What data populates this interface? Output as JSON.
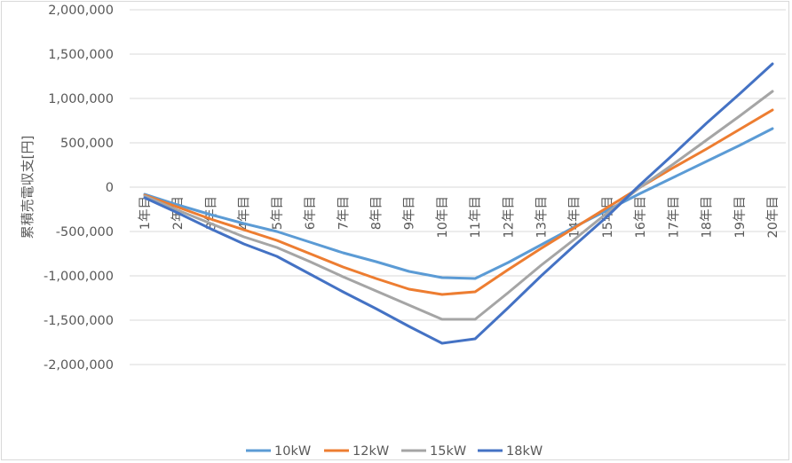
{
  "chart_data": {
    "type": "line",
    "title": "",
    "xlabel": "",
    "ylabel": "累積売電収支[円]",
    "ylim": [
      -2000000,
      2000000
    ],
    "yticks": [
      2000000,
      1500000,
      1000000,
      500000,
      0,
      -500000,
      -1000000,
      -1500000,
      -2000000
    ],
    "ytick_labels": [
      "2,000,000",
      "1,500,000",
      "1,000,000",
      "500,000",
      "0",
      "-500,000",
      "-1,000,000",
      "-1,500,000",
      "-2,000,000"
    ],
    "categories": [
      "1年目",
      "2年目",
      "3年目",
      "4年目",
      "5年目",
      "6年目",
      "7年目",
      "8年目",
      "9年目",
      "10年目",
      "11年目",
      "12年目",
      "13年目",
      "14年目",
      "15年目",
      "16年目",
      "17年目",
      "18年目",
      "19年目",
      "20年目"
    ],
    "grid": true,
    "legend_position": "bottom",
    "series": [
      {
        "name": "10kW",
        "color": "#5b9bd5",
        "values": [
          -80000,
          -200000,
          -310000,
          -410000,
          -500000,
          -620000,
          -740000,
          -840000,
          -950000,
          -1020000,
          -1030000,
          -850000,
          -650000,
          -450000,
          -260000,
          -70000,
          110000,
          290000,
          470000,
          660000
        ]
      },
      {
        "name": "12kW",
        "color": "#ed7d31",
        "values": [
          -90000,
          -225000,
          -360000,
          -480000,
          -600000,
          -750000,
          -900000,
          -1030000,
          -1150000,
          -1210000,
          -1180000,
          -930000,
          -690000,
          -460000,
          -230000,
          0,
          220000,
          430000,
          650000,
          870000
        ]
      },
      {
        "name": "15kW",
        "color": "#a5a5a5",
        "values": [
          -100000,
          -260000,
          -410000,
          -560000,
          -680000,
          -840000,
          -1010000,
          -1170000,
          -1330000,
          -1490000,
          -1490000,
          -1190000,
          -880000,
          -590000,
          -290000,
          0,
          260000,
          530000,
          800000,
          1080000
        ]
      },
      {
        "name": "18kW",
        "color": "#4472c4",
        "values": [
          -120000,
          -290000,
          -470000,
          -640000,
          -780000,
          -980000,
          -1180000,
          -1370000,
          -1570000,
          -1760000,
          -1710000,
          -1360000,
          -1000000,
          -660000,
          -330000,
          30000,
          370000,
          720000,
          1050000,
          1390000
        ]
      }
    ]
  }
}
